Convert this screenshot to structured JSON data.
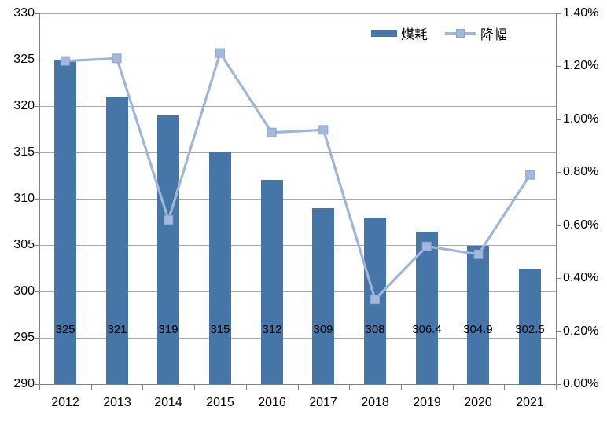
{
  "chart_data": {
    "type": "combo-bar-line",
    "title": "",
    "categories": [
      "2012",
      "2013",
      "2014",
      "2015",
      "2016",
      "2017",
      "2018",
      "2019",
      "2020",
      "2021"
    ],
    "series": [
      {
        "name": "煤耗",
        "type": "bar",
        "axis": "left",
        "values": [
          325,
          321,
          319,
          315,
          312,
          309,
          308,
          306.4,
          304.9,
          302.5
        ],
        "data_labels": [
          "325",
          "321",
          "319",
          "315",
          "312",
          "309",
          "308",
          "306.4",
          "304.9",
          "302.5"
        ],
        "color": "#4676A7"
      },
      {
        "name": "降幅",
        "type": "line",
        "axis": "right",
        "values_percent": [
          1.22,
          1.23,
          0.62,
          1.25,
          0.95,
          0.96,
          0.32,
          0.52,
          0.49,
          0.79
        ],
        "color": "#9FB5D9",
        "marker": "square",
        "marker_fill": "#A3B8DB",
        "marker_stroke": "#8CA5CC"
      }
    ],
    "left_axis": {
      "min": 290,
      "max": 330,
      "step": 5,
      "labels": [
        "330",
        "325",
        "320",
        "315",
        "310",
        "305",
        "300",
        "295",
        "290"
      ]
    },
    "right_axis": {
      "min": 0,
      "max": 1.4,
      "step": 0.2,
      "labels": [
        "1.40%",
        "1.20%",
        "1.00%",
        "0.80%",
        "0.60%",
        "0.40%",
        "0.20%",
        "0.00%"
      ]
    },
    "legend": {
      "position": "top-right"
    },
    "grid": true
  },
  "colors": {
    "grid": "#A8A8A8",
    "axis": "#808080",
    "text": "#000000",
    "background": "#FFFFFF"
  }
}
